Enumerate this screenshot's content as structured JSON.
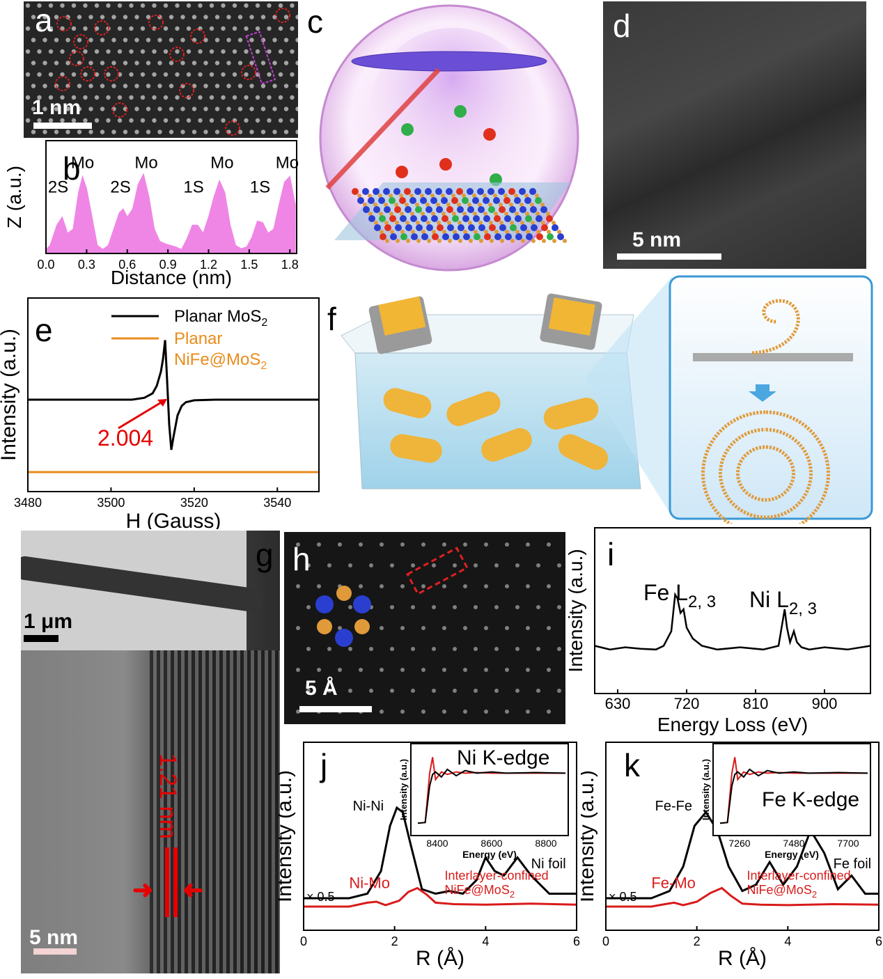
{
  "panels": {
    "a": {
      "label": "a",
      "scale": "1 nm"
    },
    "b": {
      "label": "b"
    },
    "c": {
      "label": "c"
    },
    "d": {
      "label": "d",
      "scale": "5 nm"
    },
    "e": {
      "label": "e"
    },
    "f": {
      "label": "f"
    },
    "g": {
      "label": "g",
      "scale_inset": "1 μm",
      "scale_main": "5 nm",
      "spacing": "1.21 nm"
    },
    "h": {
      "label": "h",
      "scale": "5 Å"
    },
    "i": {
      "label": "i"
    },
    "j": {
      "label": "j"
    },
    "k": {
      "label": "k"
    }
  },
  "colors": {
    "mo": "#2a3fd0",
    "s": "#e09a3a",
    "fe": "#e0301c",
    "ni": "#2fae4a",
    "pink": "#ef86e6",
    "orange": "#e98c1b",
    "red": "#d91a1a"
  },
  "chart_data": [
    {
      "id": "b",
      "type": "area",
      "xlabel": "Distance (nm)",
      "ylabel": "Z (a.u.)",
      "xlim": [
        0,
        1.85
      ],
      "xticks": [
        "0.0",
        "0.3",
        "0.6",
        "0.9",
        "1.2",
        "1.5",
        "1.8"
      ],
      "x": [
        0,
        0.03,
        0.08,
        0.12,
        0.16,
        0.2,
        0.24,
        0.27,
        0.3,
        0.34,
        0.38,
        0.42,
        0.46,
        0.5,
        0.54,
        0.57,
        0.6,
        0.64,
        0.68,
        0.72,
        0.76,
        0.8,
        0.84,
        0.88,
        0.92,
        0.96,
        1.0,
        1.04,
        1.08,
        1.12,
        1.16,
        1.2,
        1.24,
        1.28,
        1.32,
        1.36,
        1.4,
        1.44,
        1.48,
        1.52,
        1.56,
        1.6,
        1.64,
        1.68,
        1.72,
        1.76,
        1.8,
        1.84
      ],
      "y": [
        0.05,
        0.1,
        0.35,
        0.45,
        0.25,
        0.3,
        0.75,
        0.95,
        0.8,
        0.45,
        0.1,
        0.05,
        0.1,
        0.3,
        0.5,
        0.55,
        0.45,
        0.55,
        0.85,
        0.98,
        0.7,
        0.3,
        0.15,
        0.12,
        0.1,
        0.08,
        0.05,
        0.18,
        0.35,
        0.35,
        0.25,
        0.45,
        0.7,
        0.9,
        0.75,
        0.35,
        0.1,
        0.06,
        0.08,
        0.2,
        0.4,
        0.38,
        0.25,
        0.3,
        0.6,
        0.88,
        0.95,
        0.6
      ],
      "annotations": [
        {
          "text": "2S",
          "x": 0.09
        },
        {
          "text": "Mo",
          "x": 0.27
        },
        {
          "text": "2S",
          "x": 0.55
        },
        {
          "text": "Mo",
          "x": 0.74
        },
        {
          "text": "1S",
          "x": 1.09
        },
        {
          "text": "Mo",
          "x": 1.3
        },
        {
          "text": "1S",
          "x": 1.58
        },
        {
          "text": "Mo",
          "x": 1.78
        }
      ]
    },
    {
      "id": "e",
      "type": "line",
      "xlabel": "H (Gauss)",
      "ylabel": "Intensity (a.u.)",
      "xlim": [
        3480,
        3550
      ],
      "xticks": [
        "3480",
        "3500",
        "3520",
        "3540"
      ],
      "series": [
        {
          "name": "Planar MoS2",
          "color": "#000000",
          "x": [
            3480,
            3505,
            3508,
            3510,
            3511,
            3512,
            3512.5,
            3513,
            3513.5,
            3514,
            3514.5,
            3515,
            3516,
            3517,
            3518,
            3520,
            3525,
            3550
          ],
          "y": [
            0,
            0,
            0.03,
            0.1,
            0.22,
            0.45,
            0.65,
            0.95,
            0.3,
            -0.4,
            -0.8,
            -0.6,
            -0.25,
            -0.1,
            -0.04,
            -0.01,
            0,
            0
          ]
        },
        {
          "name": "Planar NiFe@MoS2",
          "color": "#e98c1b",
          "x": [
            3480,
            3550
          ],
          "y": [
            -1.0,
            -1.0
          ]
        }
      ],
      "legend": [
        "Planar MoS",
        "Planar",
        "NiFe@MoS"
      ],
      "annotation": "2.004"
    },
    {
      "id": "i",
      "type": "line",
      "xlabel": "Energy Loss (eV)",
      "ylabel": "Intensity (a.u.)",
      "xlim": [
        600,
        960
      ],
      "xticks": [
        "630",
        "720",
        "810",
        "900"
      ],
      "x": [
        600,
        620,
        640,
        660,
        680,
        690,
        700,
        705,
        708,
        712,
        716,
        720,
        728,
        740,
        760,
        790,
        820,
        840,
        848,
        851,
        855,
        860,
        864,
        870,
        880,
        900,
        930,
        960
      ],
      "y": [
        0.1,
        0.05,
        0.08,
        0.06,
        0.05,
        0.1,
        0.3,
        0.8,
        0.75,
        0.55,
        0.6,
        0.35,
        0.2,
        0.1,
        0.05,
        0.08,
        0.05,
        0.1,
        0.6,
        0.35,
        0.15,
        0.3,
        0.15,
        0.08,
        0.05,
        0.08,
        0.05,
        0.1
      ],
      "annotations": [
        "Fe L",
        "2, 3",
        "Ni L",
        "2, 3"
      ]
    },
    {
      "id": "j",
      "type": "line",
      "xlabel": "R (Å)",
      "ylabel": "Intensity (a.u.)",
      "xlim": [
        0,
        6
      ],
      "xticks": [
        "0",
        "2",
        "4",
        "6"
      ],
      "series": [
        {
          "name": "Ni foil",
          "color": "#000000",
          "x": [
            0,
            1.0,
            1.4,
            1.7,
            1.9,
            2.05,
            2.18,
            2.35,
            2.6,
            2.9,
            3.2,
            3.5,
            3.8,
            4.0,
            4.2,
            4.4,
            4.7,
            5.0,
            5.4,
            6.0
          ],
          "y": [
            0,
            0,
            0.05,
            0.3,
            0.8,
            1.0,
            0.95,
            0.6,
            0.1,
            0.05,
            0.08,
            0.05,
            0.2,
            0.45,
            0.3,
            0.25,
            0.45,
            0.25,
            0.05,
            0.05
          ]
        },
        {
          "name": "Interlayer-confined NiFe@MoS2",
          "color": "#d91a1a",
          "x": [
            0,
            1.0,
            1.4,
            1.6,
            1.8,
            2.1,
            2.3,
            2.5,
            2.7,
            2.9,
            3.3,
            4.0,
            5.0,
            6.0
          ],
          "y": [
            0,
            0,
            0.08,
            0.1,
            0.03,
            0.12,
            0.3,
            0.38,
            0.25,
            0.08,
            0.05,
            0.04,
            0.06,
            0.04
          ]
        }
      ],
      "labels": {
        "top_peak": "Ni-Ni",
        "scale": "× 0.5",
        "foil": "Ni foil",
        "bottom_peak": "Ni-Mo",
        "sample1": "Interlayer-confined",
        "sample2": "NiFe@MoS"
      },
      "inset": {
        "title": "Ni K-edge",
        "xlabel": "Energy (eV)",
        "ylabel": "Intensity (a.u.)",
        "xticks": [
          "8400",
          "8600",
          "8800"
        ]
      }
    },
    {
      "id": "k",
      "type": "line",
      "xlabel": "R (Å)",
      "ylabel": "Intensity (a.u.)",
      "xlim": [
        0,
        6
      ],
      "xticks": [
        "0",
        "2",
        "4",
        "6"
      ],
      "series": [
        {
          "name": "Fe foil",
          "color": "#000000",
          "x": [
            0,
            1.0,
            1.4,
            1.7,
            1.95,
            2.2,
            2.45,
            2.7,
            3.0,
            3.3,
            3.6,
            3.9,
            4.2,
            4.5,
            4.8,
            5.1,
            5.4,
            5.7,
            6.0
          ],
          "y": [
            0,
            0,
            0.08,
            0.35,
            0.8,
            0.95,
            0.75,
            0.35,
            0.08,
            0.15,
            0.4,
            0.15,
            0.35,
            0.75,
            0.5,
            0.1,
            0.25,
            0.05,
            0.05
          ]
        },
        {
          "name": "Interlayer-confined NiFe@MoS2",
          "color": "#d91a1a",
          "x": [
            0,
            1.0,
            1.3,
            1.5,
            1.7,
            2.0,
            2.3,
            2.55,
            2.75,
            3.0,
            3.4,
            4.0,
            5.0,
            6.0
          ],
          "y": [
            0,
            0,
            0.05,
            0.08,
            0.03,
            0.1,
            0.28,
            0.38,
            0.22,
            0.06,
            0.04,
            0.03,
            0.05,
            0.04
          ]
        }
      ],
      "labels": {
        "top_peak": "Fe-Fe",
        "scale": "× 0.5",
        "foil": "Fe foil",
        "bottom_peak": "Fe-Mo",
        "sample1": "Interlayer-confined",
        "sample2": "NiFe@MoS"
      },
      "inset": {
        "title": "Fe K-edge",
        "xlabel": "Energy (eV)",
        "ylabel": "Intensity (a.u.)",
        "xticks": [
          "7260",
          "7480",
          "7700"
        ]
      }
    }
  ]
}
